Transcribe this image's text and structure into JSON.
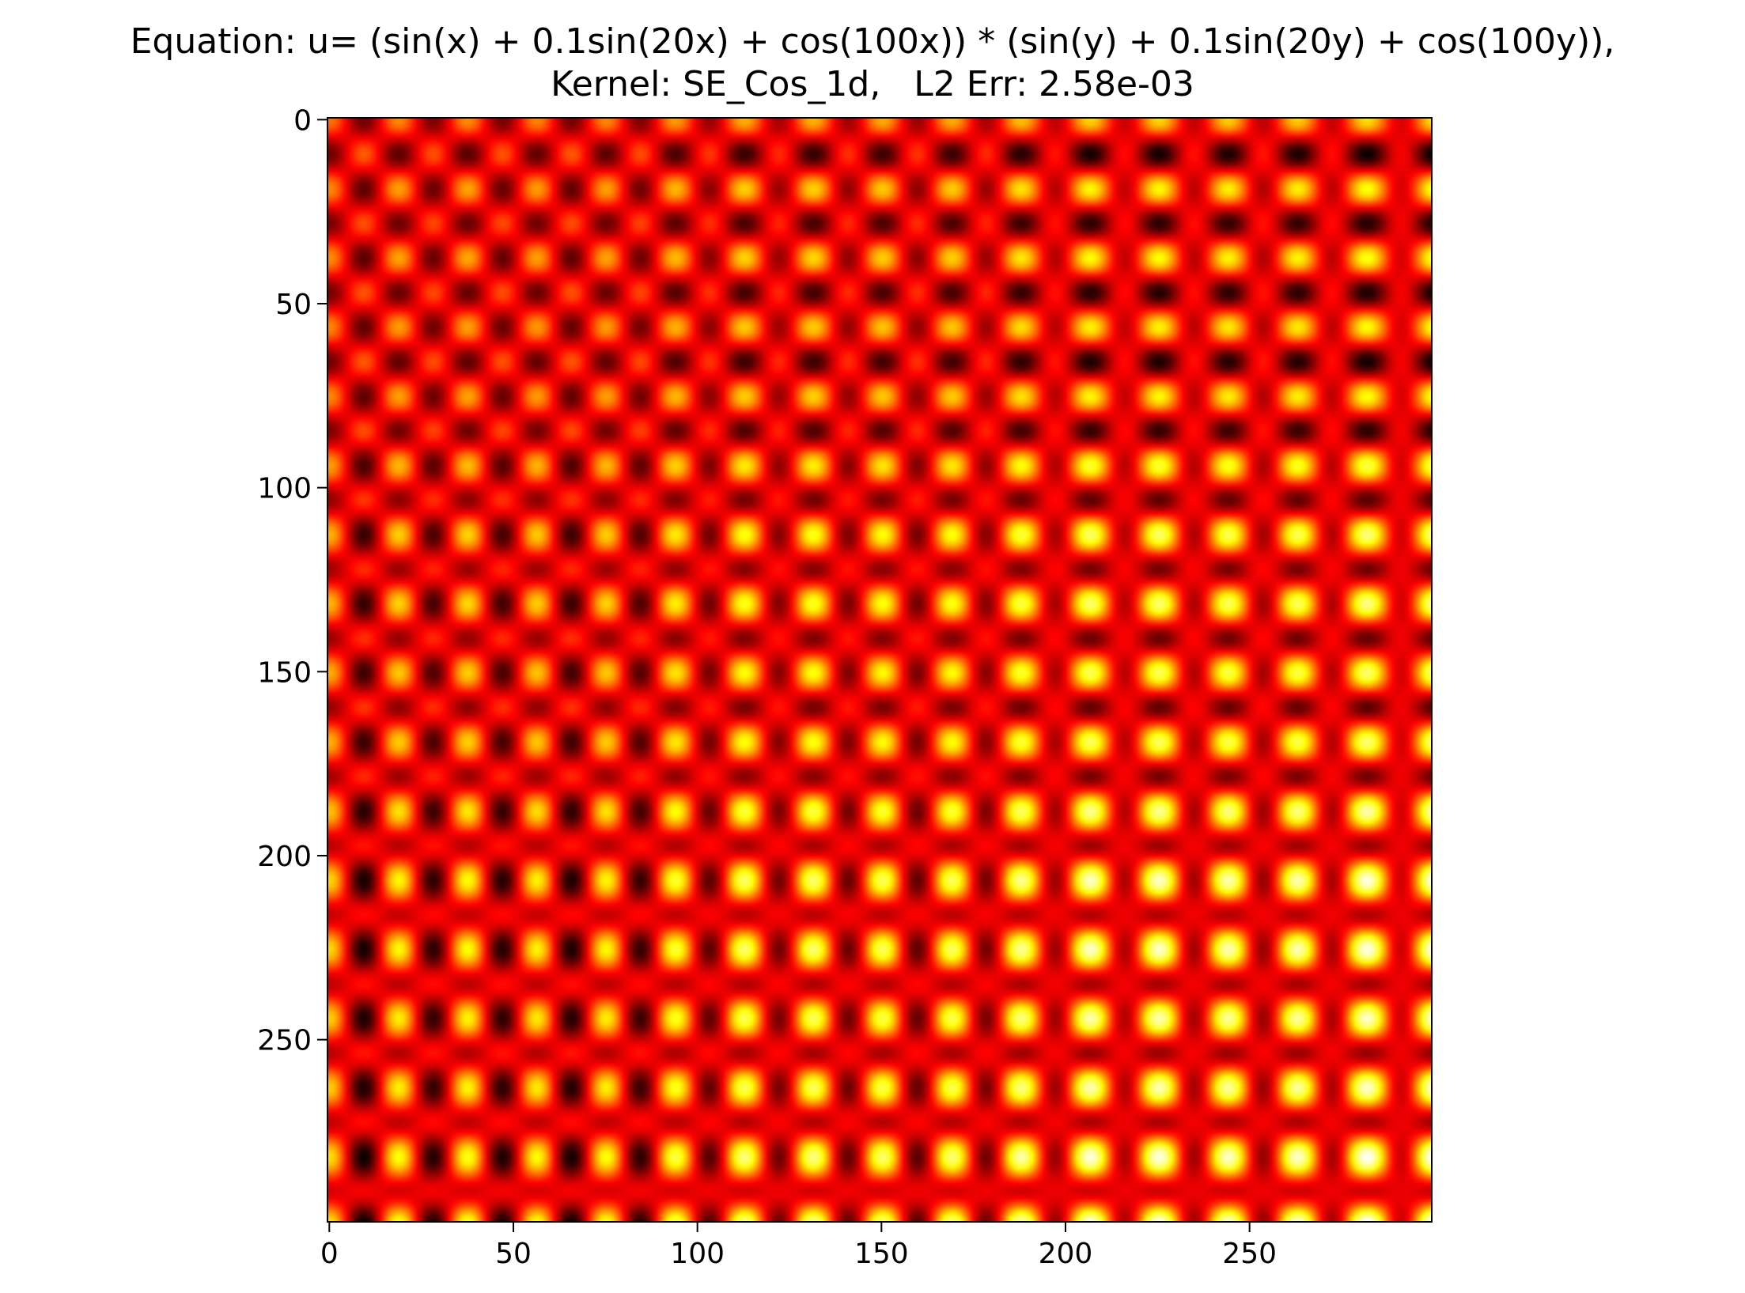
{
  "chart_data": {
    "type": "heatmap",
    "title": "Equation: u= (sin(x) + 0.1sin(20x) + cos(100x)) * (sin(y) + 0.1sin(20y) + cos(100y)),",
    "subtitle": "Kernel: SE_Cos_1d,   L2 Err: 2.58e-03",
    "colormap": "hot",
    "grid": false,
    "equation": "u = (sin(x) + 0.1sin(20x) + cos(100x)) * (sin(y) + 0.1sin(20y) + cos(100y))",
    "grid_size": 300,
    "domain": [
      0,
      1
    ],
    "x": {
      "lim": [
        0,
        299
      ],
      "ticks": [
        0,
        50,
        100,
        150,
        200,
        250
      ],
      "tick_labels": [
        "0",
        "50",
        "100",
        "150",
        "200",
        "250"
      ]
    },
    "y": {
      "lim": [
        0,
        299
      ],
      "inverted": true,
      "ticks": [
        0,
        50,
        100,
        150,
        200,
        250
      ],
      "tick_labels": [
        "0",
        "50",
        "100",
        "150",
        "200",
        "250"
      ]
    }
  }
}
